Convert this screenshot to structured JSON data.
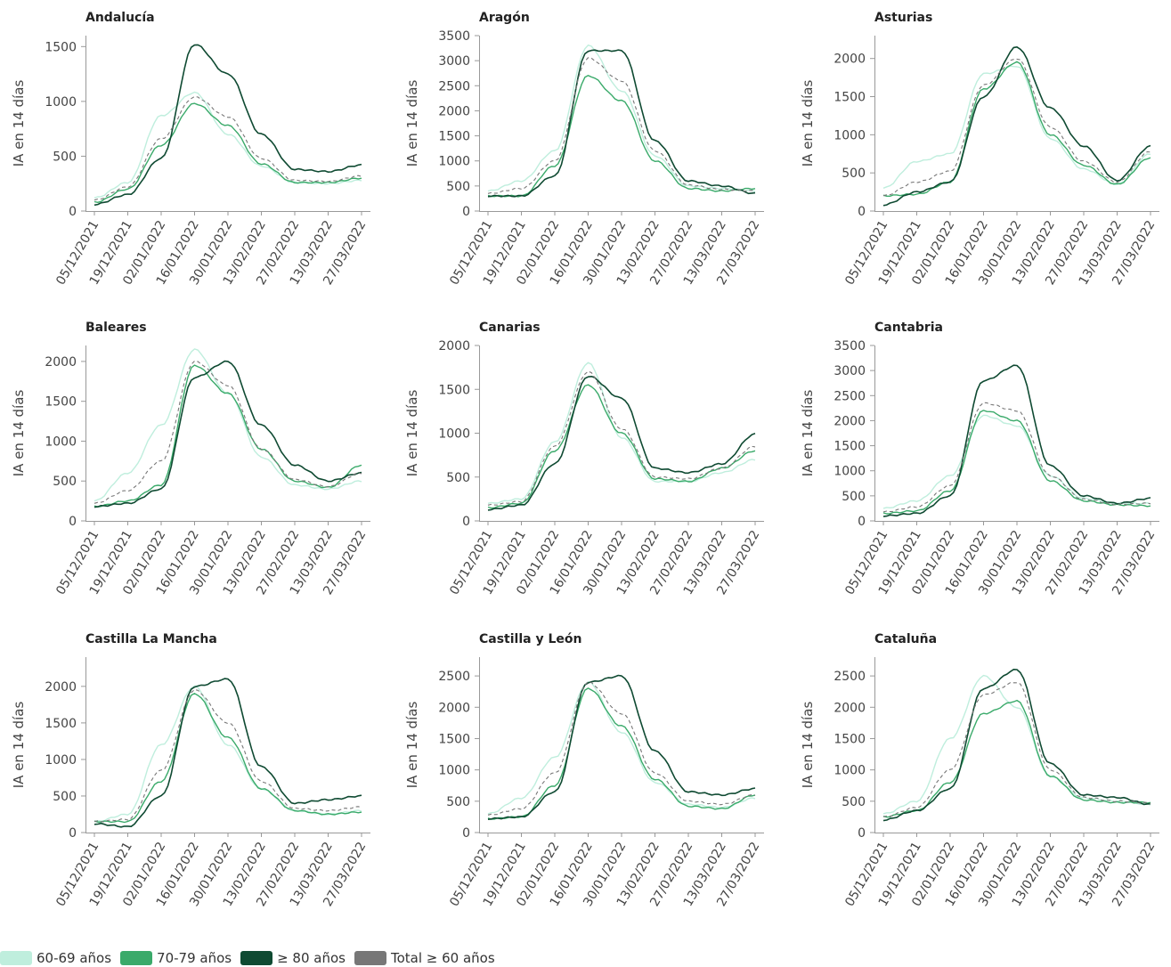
{
  "legend": [
    {
      "label": "60-69 años",
      "color": "#bfeedd"
    },
    {
      "label": "70-79 años",
      "color": "#3aaa6a"
    },
    {
      "label": "≥ 80 años",
      "color": "#0f4a32"
    },
    {
      "label": "Total ≥ 60 años",
      "color": "#777777"
    }
  ],
  "chart_data": [
    {
      "type": "line",
      "title": "Andalucía",
      "ylabel": "IA en 14 días",
      "x": [
        "05/12/2021",
        "19/12/2021",
        "02/01/2022",
        "16/01/2022",
        "30/01/2022",
        "13/02/2022",
        "27/02/2022",
        "13/03/2022",
        "27/03/2022"
      ],
      "yticks": [
        0,
        500,
        1000,
        1500
      ],
      "ylim": [
        0,
        1600
      ],
      "series": [
        {
          "name": "60-69 años",
          "values": [
            120,
            260,
            870,
            1080,
            700,
            410,
            260,
            250,
            280
          ]
        },
        {
          "name": "70-79 años",
          "values": [
            80,
            200,
            600,
            980,
            780,
            430,
            260,
            260,
            300
          ]
        },
        {
          "name": "≥ 80 años",
          "values": [
            60,
            150,
            480,
            1520,
            1250,
            700,
            380,
            360,
            420
          ]
        },
        {
          "name": "Total ≥ 60 años",
          "values": [
            100,
            220,
            660,
            1040,
            860,
            480,
            280,
            270,
            320
          ]
        }
      ]
    },
    {
      "type": "line",
      "title": "Aragón",
      "ylabel": "IA en 14 días",
      "x": [
        "05/12/2021",
        "19/12/2021",
        "02/01/2022",
        "16/01/2022",
        "30/01/2022",
        "13/02/2022",
        "27/02/2022",
        "13/03/2022",
        "27/03/2022"
      ],
      "yticks": [
        0,
        500,
        1000,
        1500,
        2000,
        2500,
        3000,
        3500
      ],
      "ylim": [
        0,
        3500
      ],
      "series": [
        {
          "name": "60-69 años",
          "values": [
            400,
            600,
            1200,
            3300,
            2400,
            1100,
            500,
            450,
            400
          ]
        },
        {
          "name": "70-79 años",
          "values": [
            300,
            300,
            900,
            2700,
            2200,
            1000,
            450,
            400,
            450
          ]
        },
        {
          "name": "≥ 80 años",
          "values": [
            300,
            300,
            700,
            3200,
            3200,
            1400,
            600,
            500,
            350
          ]
        },
        {
          "name": "Total ≥ 60 años",
          "values": [
            350,
            450,
            1000,
            3050,
            2600,
            1200,
            520,
            430,
            400
          ]
        }
      ]
    },
    {
      "type": "line",
      "title": "Asturias",
      "ylabel": "IA en 14 días",
      "x": [
        "05/12/2021",
        "19/12/2021",
        "02/01/2022",
        "16/01/2022",
        "30/01/2022",
        "13/02/2022",
        "27/02/2022",
        "13/03/2022",
        "27/03/2022"
      ],
      "yticks": [
        0,
        500,
        1000,
        1500,
        2000
      ],
      "ylim": [
        0,
        2300
      ],
      "series": [
        {
          "name": "60-69 años",
          "values": [
            300,
            650,
            750,
            1800,
            1900,
            950,
            550,
            350,
            750
          ]
        },
        {
          "name": "70-79 años",
          "values": [
            200,
            220,
            380,
            1600,
            1950,
            1000,
            600,
            350,
            700
          ]
        },
        {
          "name": "≥ 80 años",
          "values": [
            80,
            250,
            380,
            1500,
            2150,
            1350,
            850,
            400,
            850
          ]
        },
        {
          "name": "Total ≥ 60 años",
          "values": [
            200,
            380,
            520,
            1650,
            2000,
            1100,
            650,
            380,
            780
          ]
        }
      ]
    },
    {
      "type": "line",
      "title": "Baleares",
      "ylabel": "IA en 14 días",
      "x": [
        "05/12/2021",
        "19/12/2021",
        "02/01/2022",
        "16/01/2022",
        "30/01/2022",
        "13/02/2022",
        "27/02/2022",
        "13/03/2022",
        "27/03/2022"
      ],
      "yticks": [
        0,
        500,
        1000,
        1500,
        2000
      ],
      "ylim": [
        0,
        2200
      ],
      "series": [
        {
          "name": "60-69 años",
          "values": [
            250,
            600,
            1200,
            2150,
            1600,
            800,
            450,
            400,
            500
          ]
        },
        {
          "name": "70-79 años",
          "values": [
            180,
            250,
            450,
            1950,
            1600,
            900,
            500,
            420,
            700
          ]
        },
        {
          "name": "≥ 80 años",
          "values": [
            180,
            220,
            400,
            1800,
            2000,
            1200,
            700,
            500,
            600
          ]
        },
        {
          "name": "Total ≥ 60 años",
          "values": [
            220,
            380,
            750,
            2000,
            1700,
            900,
            520,
            430,
            600
          ]
        }
      ]
    },
    {
      "type": "line",
      "title": "Canarias",
      "ylabel": "IA en 14 días",
      "x": [
        "05/12/2021",
        "19/12/2021",
        "02/01/2022",
        "16/01/2022",
        "30/01/2022",
        "13/02/2022",
        "27/02/2022",
        "13/03/2022",
        "27/03/2022"
      ],
      "yticks": [
        0,
        500,
        1000,
        1500,
        2000
      ],
      "ylim": [
        0,
        2000
      ],
      "series": [
        {
          "name": "60-69 años",
          "values": [
            200,
            250,
            900,
            1800,
            950,
            450,
            450,
            550,
            700
          ]
        },
        {
          "name": "70-79 años",
          "values": [
            150,
            200,
            800,
            1550,
            1000,
            480,
            450,
            600,
            800
          ]
        },
        {
          "name": "≥ 80 años",
          "values": [
            130,
            180,
            650,
            1650,
            1400,
            600,
            550,
            650,
            990
          ]
        },
        {
          "name": "Total ≥ 60 años",
          "values": [
            180,
            220,
            850,
            1700,
            1050,
            500,
            480,
            600,
            850
          ]
        }
      ]
    },
    {
      "type": "line",
      "title": "Cantabria",
      "ylabel": "IA en 14 días",
      "x": [
        "05/12/2021",
        "19/12/2021",
        "02/01/2022",
        "16/01/2022",
        "30/01/2022",
        "13/02/2022",
        "27/02/2022",
        "13/03/2022",
        "27/03/2022"
      ],
      "yticks": [
        0,
        500,
        1000,
        1500,
        2000,
        2500,
        3000,
        3500
      ],
      "ylim": [
        0,
        3500
      ],
      "series": [
        {
          "name": "60-69 años",
          "values": [
            250,
            400,
            900,
            2100,
            1900,
            900,
            450,
            350,
            350
          ]
        },
        {
          "name": "70-79 años",
          "values": [
            150,
            200,
            600,
            2200,
            2000,
            800,
            400,
            320,
            300
          ]
        },
        {
          "name": "≥ 80 años",
          "values": [
            100,
            150,
            500,
            2800,
            3100,
            1100,
            500,
            350,
            450
          ]
        },
        {
          "name": "Total ≥ 60 años",
          "values": [
            180,
            280,
            700,
            2350,
            2200,
            900,
            430,
            330,
            350
          ]
        }
      ]
    },
    {
      "type": "line",
      "title": "Castilla La Mancha",
      "ylabel": "IA en 14 días",
      "x": [
        "05/12/2021",
        "19/12/2021",
        "02/01/2022",
        "16/01/2022",
        "30/01/2022",
        "13/02/2022",
        "27/02/2022",
        "13/03/2022",
        "27/03/2022"
      ],
      "yticks": [
        0,
        500,
        1000,
        1500,
        2000
      ],
      "ylim": [
        0,
        2400
      ],
      "series": [
        {
          "name": "60-69 años",
          "values": [
            150,
            250,
            1200,
            2000,
            1200,
            600,
            300,
            250,
            300
          ]
        },
        {
          "name": "70-79 años",
          "values": [
            150,
            150,
            700,
            1900,
            1300,
            600,
            300,
            250,
            280
          ]
        },
        {
          "name": "≥ 80 años",
          "values": [
            120,
            80,
            500,
            2000,
            2100,
            900,
            400,
            450,
            500
          ]
        },
        {
          "name": "Total ≥ 60 años",
          "values": [
            150,
            180,
            850,
            1950,
            1500,
            700,
            330,
            300,
            350
          ]
        }
      ]
    },
    {
      "type": "line",
      "title": "Castilla y León",
      "ylabel": "IA en 14 días",
      "x": [
        "05/12/2021",
        "19/12/2021",
        "02/01/2022",
        "16/01/2022",
        "30/01/2022",
        "13/02/2022",
        "27/02/2022",
        "13/03/2022",
        "27/03/2022"
      ],
      "yticks": [
        0,
        500,
        1000,
        1500,
        2000,
        2500
      ],
      "ylim": [
        0,
        2800
      ],
      "series": [
        {
          "name": "60-69 años",
          "values": [
            300,
            550,
            1200,
            2400,
            1600,
            800,
            450,
            400,
            550
          ]
        },
        {
          "name": "70-79 años",
          "values": [
            220,
            250,
            750,
            2300,
            1700,
            850,
            420,
            380,
            600
          ]
        },
        {
          "name": "≥ 80 años",
          "values": [
            220,
            250,
            650,
            2400,
            2500,
            1300,
            650,
            600,
            700
          ]
        },
        {
          "name": "Total ≥ 60 años",
          "values": [
            280,
            380,
            950,
            2400,
            1900,
            950,
            500,
            450,
            600
          ]
        }
      ]
    },
    {
      "type": "line",
      "title": "Cataluña",
      "ylabel": "IA en 14 días",
      "x": [
        "05/12/2021",
        "19/12/2021",
        "02/01/2022",
        "16/01/2022",
        "30/01/2022",
        "13/02/2022",
        "27/02/2022",
        "13/03/2022",
        "27/03/2022"
      ],
      "yticks": [
        0,
        500,
        1000,
        1500,
        2000,
        2500
      ],
      "ylim": [
        0,
        2800
      ],
      "series": [
        {
          "name": "60-69 años",
          "values": [
            300,
            500,
            1500,
            2500,
            2000,
            900,
            550,
            500,
            450
          ]
        },
        {
          "name": "70-79 años",
          "values": [
            250,
            350,
            800,
            1900,
            2100,
            900,
            520,
            480,
            480
          ]
        },
        {
          "name": "≥ 80 años",
          "values": [
            200,
            350,
            700,
            2300,
            2600,
            1100,
            600,
            560,
            450
          ]
        },
        {
          "name": "Total ≥ 60 años",
          "values": [
            250,
            400,
            1000,
            2200,
            2400,
            1000,
            560,
            500,
            470
          ]
        }
      ]
    }
  ]
}
